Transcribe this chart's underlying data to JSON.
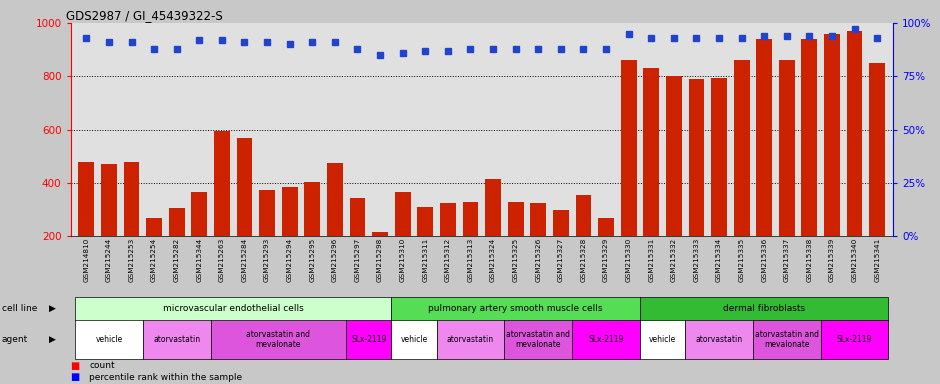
{
  "title": "GDS2987 / GI_45439322-S",
  "samples": [
    "GSM214810",
    "GSM215244",
    "GSM215253",
    "GSM215254",
    "GSM215282",
    "GSM215344",
    "GSM215263",
    "GSM215284",
    "GSM215293",
    "GSM215294",
    "GSM215295",
    "GSM215296",
    "GSM215297",
    "GSM215298",
    "GSM215310",
    "GSM215311",
    "GSM215312",
    "GSM215313",
    "GSM215324",
    "GSM215325",
    "GSM215326",
    "GSM215327",
    "GSM215328",
    "GSM215329",
    "GSM215330",
    "GSM215331",
    "GSM215332",
    "GSM215333",
    "GSM215334",
    "GSM215335",
    "GSM215336",
    "GSM215337",
    "GSM215338",
    "GSM215339",
    "GSM215340",
    "GSM215341"
  ],
  "counts": [
    480,
    470,
    480,
    270,
    305,
    365,
    595,
    570,
    375,
    385,
    405,
    475,
    345,
    215,
    365,
    310,
    325,
    330,
    415,
    330,
    325,
    300,
    355,
    270,
    860,
    830,
    800,
    790,
    795,
    860,
    940,
    860,
    940,
    960,
    970,
    850
  ],
  "percentiles": [
    93,
    91,
    91,
    88,
    88,
    92,
    92,
    91,
    91,
    90,
    91,
    91,
    88,
    85,
    86,
    87,
    87,
    88,
    88,
    88,
    88,
    88,
    88,
    88,
    95,
    93,
    93,
    93,
    93,
    93,
    94,
    94,
    94,
    94,
    97,
    93
  ],
  "cell_lines": [
    {
      "label": "microvascular endothelial cells",
      "start": 0,
      "end": 14,
      "color": "#ccffcc"
    },
    {
      "label": "pulmonary artery smooth muscle cells",
      "start": 14,
      "end": 25,
      "color": "#55dd55"
    },
    {
      "label": "dermal fibroblasts",
      "start": 25,
      "end": 36,
      "color": "#33bb33"
    }
  ],
  "agents": [
    {
      "label": "vehicle",
      "start": 0,
      "end": 3,
      "color": "#ffffff"
    },
    {
      "label": "atorvastatin",
      "start": 3,
      "end": 6,
      "color": "#ee88ee"
    },
    {
      "label": "atorvastatin and\nmevalonate",
      "start": 6,
      "end": 12,
      "color": "#dd55dd"
    },
    {
      "label": "SLx-2119",
      "start": 12,
      "end": 14,
      "color": "#ff00ff"
    },
    {
      "label": "vehicle",
      "start": 14,
      "end": 16,
      "color": "#ffffff"
    },
    {
      "label": "atorvastatin",
      "start": 16,
      "end": 19,
      "color": "#ee88ee"
    },
    {
      "label": "atorvastatin and\nmevalonate",
      "start": 19,
      "end": 22,
      "color": "#dd55dd"
    },
    {
      "label": "SLx-2119",
      "start": 22,
      "end": 25,
      "color": "#ff00ff"
    },
    {
      "label": "vehicle",
      "start": 25,
      "end": 27,
      "color": "#ffffff"
    },
    {
      "label": "atorvastatin",
      "start": 27,
      "end": 30,
      "color": "#ee88ee"
    },
    {
      "label": "atorvastatin and\nmevalonate",
      "start": 30,
      "end": 33,
      "color": "#dd55dd"
    },
    {
      "label": "SLx-2119",
      "start": 33,
      "end": 36,
      "color": "#ff00ff"
    }
  ],
  "bar_color": "#cc2200",
  "dot_color": "#2244cc",
  "ylim_left": [
    200,
    1000
  ],
  "ylim_right": [
    0,
    100
  ],
  "yticks_left": [
    200,
    400,
    600,
    800,
    1000
  ],
  "yticks_right": [
    0,
    25,
    50,
    75,
    100
  ],
  "bg_color": "#e0e0e0",
  "fig_bg": "#c8c8c8"
}
